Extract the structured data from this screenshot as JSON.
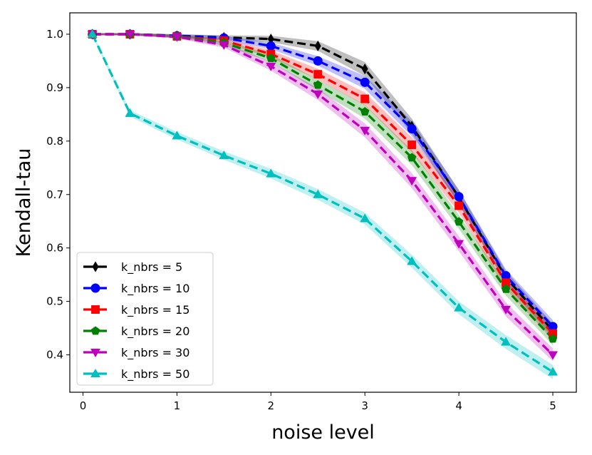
{
  "chart_data": {
    "type": "line",
    "title": "",
    "xlabel": "noise level",
    "ylabel": "Kendall-tau",
    "xlim": [
      -0.14,
      5.25
    ],
    "ylim": [
      0.33,
      1.04
    ],
    "xticks": [
      0,
      1,
      2,
      3,
      4,
      5
    ],
    "xtick_labels": [
      "0",
      "1",
      "2",
      "3",
      "4",
      "5"
    ],
    "yticks": [
      0.4,
      0.5,
      0.6,
      0.7,
      0.8,
      0.9,
      1.0
    ],
    "ytick_labels": [
      "0.4",
      "0.5",
      "0.6",
      "0.7",
      "0.8",
      "0.9",
      "1.0"
    ],
    "grid": false,
    "legend_position": "lower-left",
    "x": [
      0.1,
      0.5,
      1.0,
      1.5,
      2.0,
      2.5,
      3.0,
      3.5,
      4.0,
      4.5,
      5.0
    ],
    "series": [
      {
        "name": "k_nbrs = 5",
        "color": "#000000",
        "marker": "diamond",
        "values": [
          1.0,
          1.0,
          0.997,
          0.994,
          0.991,
          0.978,
          0.935,
          0.828,
          0.695,
          0.545,
          0.445
        ],
        "band": [
          0.002,
          0.002,
          0.003,
          0.004,
          0.006,
          0.009,
          0.013,
          0.014,
          0.013,
          0.012,
          0.013
        ]
      },
      {
        "name": "k_nbrs = 10",
        "color": "#0000ff",
        "marker": "circle",
        "values": [
          1.0,
          1.0,
          0.997,
          0.993,
          0.978,
          0.95,
          0.91,
          0.823,
          0.696,
          0.548,
          0.453
        ],
        "band": [
          0.002,
          0.002,
          0.003,
          0.004,
          0.006,
          0.009,
          0.012,
          0.014,
          0.013,
          0.012,
          0.012
        ]
      },
      {
        "name": "k_nbrs = 15",
        "color": "#ff0000",
        "marker": "square",
        "values": [
          1.0,
          1.0,
          0.996,
          0.988,
          0.963,
          0.925,
          0.879,
          0.793,
          0.679,
          0.535,
          0.44
        ],
        "band": [
          0.002,
          0.002,
          0.003,
          0.004,
          0.007,
          0.01,
          0.012,
          0.014,
          0.013,
          0.012,
          0.012
        ]
      },
      {
        "name": "k_nbrs = 20",
        "color": "#008000",
        "marker": "pentagon",
        "values": [
          1.0,
          1.0,
          0.996,
          0.984,
          0.955,
          0.905,
          0.855,
          0.769,
          0.649,
          0.523,
          0.43
        ],
        "band": [
          0.002,
          0.002,
          0.003,
          0.005,
          0.007,
          0.01,
          0.013,
          0.014,
          0.013,
          0.012,
          0.012
        ]
      },
      {
        "name": "k_nbrs = 30",
        "color": "#bf00bf",
        "marker": "triangle-down",
        "values": [
          1.0,
          1.0,
          0.995,
          0.98,
          0.94,
          0.888,
          0.82,
          0.726,
          0.608,
          0.485,
          0.4
        ],
        "band": [
          0.002,
          0.002,
          0.003,
          0.005,
          0.008,
          0.011,
          0.013,
          0.014,
          0.014,
          0.013,
          0.012
        ]
      },
      {
        "name": "k_nbrs = 50",
        "color": "#00bfbf",
        "marker": "triangle-up",
        "values": [
          1.0,
          0.852,
          0.81,
          0.773,
          0.739,
          0.7,
          0.655,
          0.575,
          0.488,
          0.424,
          0.368
        ],
        "band": [
          0.003,
          0.006,
          0.007,
          0.008,
          0.009,
          0.01,
          0.011,
          0.012,
          0.012,
          0.013,
          0.013
        ]
      }
    ]
  }
}
